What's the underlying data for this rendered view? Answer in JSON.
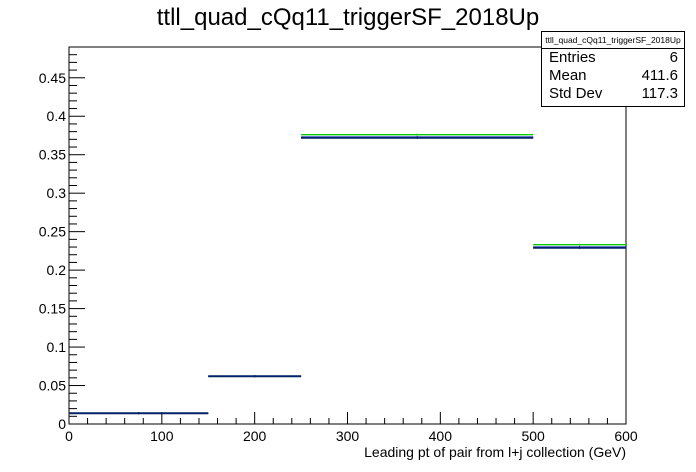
{
  "title": "ttll_quad_cQq11_triggerSF_2018Up",
  "stats_box": {
    "name": "ttll_quad_cQq11_triggerSF_2018Up",
    "entries_label": "Entries",
    "entries_value": "6",
    "mean_label": "Mean",
    "mean_value": "411.6",
    "stddev_label": "Std Dev",
    "stddev_value": "117.3"
  },
  "chart_data": {
    "type": "bar",
    "style": "histogram-steps",
    "title": "ttll_quad_cQq11_triggerSF_2018Up",
    "xlabel": "Leading pt of pair from l+j collection (GeV)",
    "ylabel": "",
    "xlim": [
      0,
      600
    ],
    "ylim": [
      0,
      0.49
    ],
    "x_ticks": [
      0,
      100,
      200,
      300,
      400,
      500,
      600
    ],
    "x_tick_labels": [
      "0",
      "100",
      "200",
      "300",
      "400",
      "500",
      "600"
    ],
    "y_ticks": [
      0,
      0.05,
      0.1,
      0.15,
      0.2,
      0.25,
      0.3,
      0.35,
      0.4,
      0.45
    ],
    "y_tick_labels": [
      "0",
      "0.05",
      "0.1",
      "0.15",
      "0.2",
      "0.25",
      "0.3",
      "0.35",
      "0.4",
      "0.45"
    ],
    "bin_edges": [
      0,
      150,
      250,
      500,
      600
    ],
    "grid": false,
    "series": [
      {
        "color": "#000000",
        "values": [
          0.014,
          0.062,
          0.372,
          0.229
        ]
      },
      {
        "color": "#1a1aff",
        "values": [
          0.014,
          0.062,
          0.373,
          0.23
        ]
      },
      {
        "color": "#00cc00",
        "values": [
          0.014,
          0.062,
          0.376,
          0.233
        ]
      },
      {
        "color": "#002266",
        "values": [
          0.014,
          0.062,
          0.372,
          0.229
        ]
      }
    ]
  }
}
